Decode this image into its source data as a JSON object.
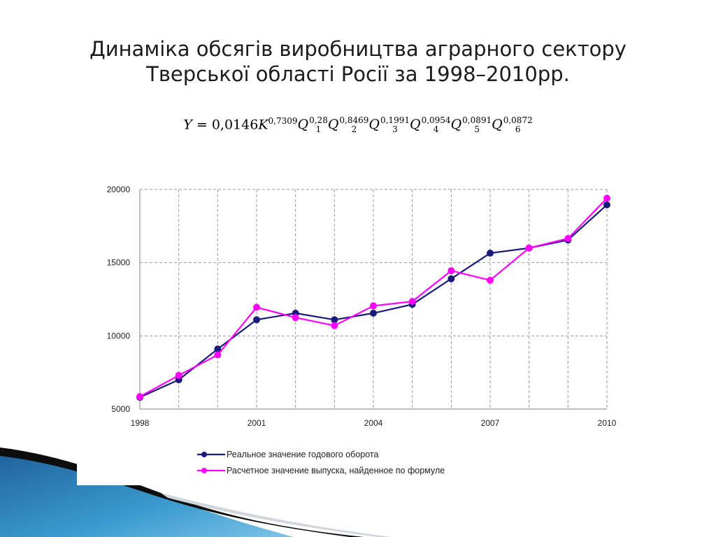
{
  "title_line1": "Динаміка обсягів виробництва аграрного сектору",
  "title_line2": "Тверської області Росії за 1998–2010рр.",
  "formula": {
    "lhs": "Y",
    "eq": "= 0,0146",
    "k": "K",
    "k_exp": "0,7309",
    "terms": [
      {
        "sym": "Q",
        "sub": "1",
        "exp": "0,28"
      },
      {
        "sym": "Q",
        "sub": "2",
        "exp": "0,8469"
      },
      {
        "sym": "Q",
        "sub": "3",
        "exp": "0,1991"
      },
      {
        "sym": "Q",
        "sub": "4",
        "exp": "0,0954"
      },
      {
        "sym": "Q",
        "sub": "5",
        "exp": "0,0891"
      },
      {
        "sym": "Q",
        "sub": "6",
        "exp": "0,0872"
      }
    ]
  },
  "chart_data": {
    "type": "line",
    "x": [
      1998,
      1999,
      2000,
      2001,
      2002,
      2003,
      2004,
      2005,
      2006,
      2007,
      2008,
      2009,
      2010
    ],
    "x_tick_labels": [
      "1998",
      "2001",
      "2004",
      "2007",
      "2010"
    ],
    "y_tick_labels": [
      "5000",
      "10000",
      "15000",
      "20000"
    ],
    "ylim": [
      5000,
      20000
    ],
    "grid": true,
    "legend_position": "bottom",
    "series": [
      {
        "name": "Реальное значение годового оборота",
        "color": "#1a1a7a",
        "values": [
          5800,
          7000,
          9100,
          11100,
          11550,
          11100,
          11550,
          12150,
          13900,
          15650,
          16000,
          16550,
          18950
        ]
      },
      {
        "name": "Расчетное значение выпуска, найденное по формуле",
        "color": "#ff00ff",
        "values": [
          5850,
          7300,
          8700,
          11950,
          11250,
          10700,
          12050,
          12350,
          14450,
          13800,
          16000,
          16650,
          19400
        ]
      }
    ]
  }
}
